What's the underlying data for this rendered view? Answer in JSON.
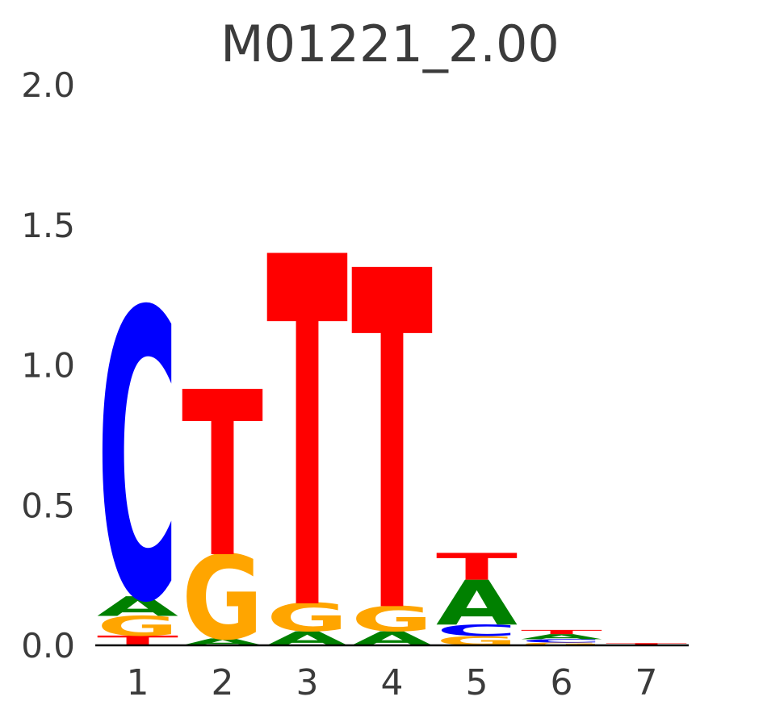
{
  "title": "M01221_2.00",
  "chart_data": {
    "type": "sequence_logo",
    "title": "M01221_2.00",
    "xlabel": "",
    "ylabel": "",
    "ylim": [
      0,
      2.0
    ],
    "grid": false,
    "axis_text_color": "#3b3b3b",
    "axis_line_color": "#000000",
    "yticks": [
      {
        "label": "0.0",
        "value": 0.0
      },
      {
        "label": "0.5",
        "value": 0.5
      },
      {
        "label": "1.0",
        "value": 1.0
      },
      {
        "label": "1.5",
        "value": 1.5
      },
      {
        "label": "2.0",
        "value": 2.0
      }
    ],
    "xticks": [
      {
        "label": "1",
        "value": 1
      },
      {
        "label": "2",
        "value": 2
      },
      {
        "label": "3",
        "value": 3
      },
      {
        "label": "4",
        "value": 4
      },
      {
        "label": "5",
        "value": 5
      },
      {
        "label": "6",
        "value": 6
      },
      {
        "label": "7",
        "value": 7
      }
    ],
    "alphabet_colors": {
      "A": "#008000",
      "C": "#0000ff",
      "G": "#ffa500",
      "T": "#ff0000"
    },
    "stacks": [
      {
        "position": 1,
        "letters": [
          {
            "base": "T",
            "bits": 0.035
          },
          {
            "base": "G",
            "bits": 0.07
          },
          {
            "base": "A",
            "bits": 0.07
          },
          {
            "base": "C",
            "bits": 1.03
          }
        ]
      },
      {
        "position": 2,
        "letters": [
          {
            "base": "A",
            "bits": 0.025
          },
          {
            "base": "G",
            "bits": 0.3
          },
          {
            "base": "T",
            "bits": 0.59
          }
        ]
      },
      {
        "position": 3,
        "letters": [
          {
            "base": "A",
            "bits": 0.05
          },
          {
            "base": "G",
            "bits": 0.1
          },
          {
            "base": "T",
            "bits": 1.25
          }
        ]
      },
      {
        "position": 4,
        "letters": [
          {
            "base": "A",
            "bits": 0.05
          },
          {
            "base": "G",
            "bits": 0.09
          },
          {
            "base": "T",
            "bits": 1.21
          }
        ]
      },
      {
        "position": 5,
        "letters": [
          {
            "base": "G",
            "bits": 0.034
          },
          {
            "base": "C",
            "bits": 0.04
          },
          {
            "base": "A",
            "bits": 0.16
          },
          {
            "base": "T",
            "bits": 0.096
          }
        ]
      },
      {
        "position": 6,
        "letters": [
          {
            "base": "G",
            "bits": 0.01
          },
          {
            "base": "C",
            "bits": 0.012
          },
          {
            "base": "A",
            "bits": 0.018
          },
          {
            "base": "T",
            "bits": 0.015
          }
        ]
      },
      {
        "position": 7,
        "letters": [
          {
            "base": "T",
            "bits": 0.008
          }
        ]
      }
    ]
  }
}
